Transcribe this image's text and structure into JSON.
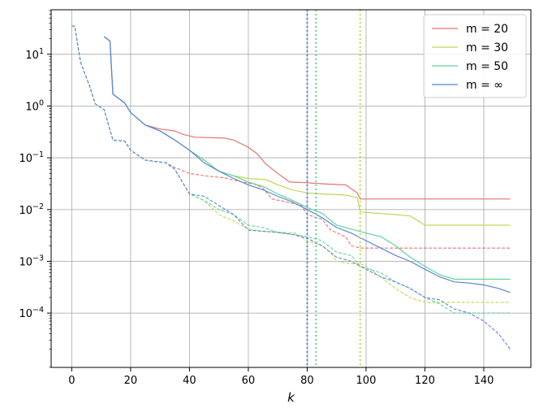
{
  "chart_data": {
    "type": "line",
    "xlabel": "k",
    "ylabel": "",
    "xlim": [
      -7,
      156
    ],
    "ylim_log10": [
      -5.05,
      1.86
    ],
    "yscale": "log",
    "x_ticks": [
      0,
      20,
      40,
      60,
      80,
      100,
      120,
      140
    ],
    "y_ticks": [
      {
        "exp": 1,
        "label": "10",
        "sup": "1"
      },
      {
        "exp": 0,
        "label": "10",
        "sup": "0"
      },
      {
        "exp": -1,
        "label": "10",
        "sup": "−1"
      },
      {
        "exp": -2,
        "label": "10",
        "sup": "−2"
      },
      {
        "exp": -3,
        "label": "10",
        "sup": "−3"
      },
      {
        "exp": -4,
        "label": "10",
        "sup": "−4"
      }
    ],
    "grid": true,
    "legend_position": "top-right",
    "series": [
      {
        "name": "m = 20",
        "color": "#e5736e",
        "solid": [
          [
            11,
            22
          ],
          [
            13,
            18
          ],
          [
            14,
            1.7
          ],
          [
            18,
            1.15
          ],
          [
            20,
            0.75
          ],
          [
            25,
            0.43
          ],
          [
            30,
            0.36
          ],
          [
            35,
            0.33
          ],
          [
            38,
            0.28
          ],
          [
            42,
            0.25
          ],
          [
            52,
            0.24
          ],
          [
            55,
            0.22
          ],
          [
            60,
            0.16
          ],
          [
            63,
            0.12
          ],
          [
            66,
            0.075
          ],
          [
            70,
            0.05
          ],
          [
            74,
            0.034
          ],
          [
            80,
            0.033
          ],
          [
            87,
            0.031
          ],
          [
            93,
            0.03
          ],
          [
            97,
            0.021
          ],
          [
            98,
            0.016
          ],
          [
            149,
            0.016
          ]
        ],
        "dashed": [
          [
            0,
            35
          ],
          [
            1,
            35
          ],
          [
            3,
            7
          ],
          [
            6,
            2.5
          ],
          [
            8,
            1.1
          ],
          [
            11,
            0.85
          ],
          [
            14,
            0.22
          ],
          [
            18,
            0.21
          ],
          [
            20,
            0.14
          ],
          [
            25,
            0.09
          ],
          [
            32,
            0.08
          ],
          [
            35,
            0.065
          ],
          [
            40,
            0.05
          ],
          [
            45,
            0.045
          ],
          [
            52,
            0.041
          ],
          [
            55,
            0.037
          ],
          [
            58,
            0.034
          ],
          [
            62,
            0.031
          ],
          [
            65,
            0.026
          ],
          [
            68,
            0.016
          ],
          [
            73,
            0.014
          ],
          [
            78,
            0.012
          ],
          [
            80,
            0.008
          ],
          [
            85,
            0.0065
          ],
          [
            88,
            0.004
          ],
          [
            93,
            0.003
          ],
          [
            95,
            0.002
          ],
          [
            98,
            0.0018
          ],
          [
            149,
            0.0018
          ]
        ]
      },
      {
        "name": "m = 30",
        "color": "#c3d655",
        "solid": [
          [
            11,
            22
          ],
          [
            13,
            18
          ],
          [
            14,
            1.7
          ],
          [
            18,
            1.15
          ],
          [
            20,
            0.75
          ],
          [
            25,
            0.43
          ],
          [
            30,
            0.33
          ],
          [
            35,
            0.22
          ],
          [
            40,
            0.14
          ],
          [
            45,
            0.09
          ],
          [
            50,
            0.055
          ],
          [
            55,
            0.045
          ],
          [
            60,
            0.04
          ],
          [
            66,
            0.038
          ],
          [
            70,
            0.03
          ],
          [
            75,
            0.024
          ],
          [
            80,
            0.021
          ],
          [
            85,
            0.02
          ],
          [
            93,
            0.019
          ],
          [
            97,
            0.017
          ],
          [
            98,
            0.009
          ],
          [
            110,
            0.008
          ],
          [
            115,
            0.0075
          ],
          [
            120,
            0.005
          ],
          [
            149,
            0.005
          ]
        ],
        "dashed": [
          [
            0,
            35
          ],
          [
            1,
            35
          ],
          [
            3,
            7
          ],
          [
            6,
            2.5
          ],
          [
            8,
            1.1
          ],
          [
            11,
            0.85
          ],
          [
            14,
            0.22
          ],
          [
            18,
            0.21
          ],
          [
            20,
            0.14
          ],
          [
            25,
            0.09
          ],
          [
            32,
            0.08
          ],
          [
            35,
            0.06
          ],
          [
            40,
            0.02
          ],
          [
            45,
            0.015
          ],
          [
            50,
            0.008
          ],
          [
            55,
            0.006
          ],
          [
            60,
            0.0042
          ],
          [
            65,
            0.0038
          ],
          [
            70,
            0.0037
          ],
          [
            76,
            0.0035
          ],
          [
            80,
            0.0025
          ],
          [
            85,
            0.002
          ],
          [
            88,
            0.0015
          ],
          [
            90,
            0.001
          ],
          [
            95,
            0.0009
          ],
          [
            98,
            0.0009
          ],
          [
            100,
            0.0008
          ],
          [
            105,
            0.0005
          ],
          [
            110,
            0.0003
          ],
          [
            115,
            0.0002
          ],
          [
            120,
            0.00016
          ],
          [
            149,
            0.00016
          ]
        ]
      },
      {
        "name": "m = 50",
        "color": "#5fd59a",
        "solid": [
          [
            11,
            22
          ],
          [
            13,
            18
          ],
          [
            14,
            1.7
          ],
          [
            18,
            1.15
          ],
          [
            20,
            0.75
          ],
          [
            25,
            0.43
          ],
          [
            30,
            0.33
          ],
          [
            35,
            0.22
          ],
          [
            40,
            0.14
          ],
          [
            45,
            0.09
          ],
          [
            50,
            0.055
          ],
          [
            55,
            0.045
          ],
          [
            60,
            0.034
          ],
          [
            65,
            0.028
          ],
          [
            70,
            0.02
          ],
          [
            75,
            0.015
          ],
          [
            80,
            0.011
          ],
          [
            85,
            0.0085
          ],
          [
            90,
            0.005
          ],
          [
            95,
            0.0042
          ],
          [
            100,
            0.0035
          ],
          [
            105,
            0.003
          ],
          [
            110,
            0.002
          ],
          [
            115,
            0.0012
          ],
          [
            120,
            0.0008
          ],
          [
            125,
            0.00055
          ],
          [
            130,
            0.00045
          ],
          [
            149,
            0.00045
          ]
        ],
        "dashed": [
          [
            0,
            35
          ],
          [
            1,
            35
          ],
          [
            3,
            7
          ],
          [
            6,
            2.5
          ],
          [
            8,
            1.1
          ],
          [
            11,
            0.85
          ],
          [
            14,
            0.22
          ],
          [
            18,
            0.21
          ],
          [
            20,
            0.14
          ],
          [
            25,
            0.09
          ],
          [
            32,
            0.08
          ],
          [
            35,
            0.06
          ],
          [
            40,
            0.02
          ],
          [
            45,
            0.015
          ],
          [
            50,
            0.01
          ],
          [
            55,
            0.008
          ],
          [
            60,
            0.005
          ],
          [
            65,
            0.0045
          ],
          [
            70,
            0.0036
          ],
          [
            75,
            0.0033
          ],
          [
            80,
            0.003
          ],
          [
            85,
            0.0025
          ],
          [
            90,
            0.0015
          ],
          [
            95,
            0.0013
          ],
          [
            98,
            0.0008
          ],
          [
            105,
            0.0006
          ],
          [
            110,
            0.0004
          ],
          [
            115,
            0.0003
          ],
          [
            120,
            0.0002
          ],
          [
            125,
            0.00015
          ],
          [
            130,
            0.0001
          ],
          [
            149,
            0.0001
          ]
        ]
      },
      {
        "name": "m = ∞",
        "color": "#5b84d6",
        "solid": [
          [
            11,
            22
          ],
          [
            13,
            18
          ],
          [
            14,
            1.7
          ],
          [
            18,
            1.15
          ],
          [
            20,
            0.75
          ],
          [
            25,
            0.43
          ],
          [
            30,
            0.33
          ],
          [
            35,
            0.22
          ],
          [
            40,
            0.14
          ],
          [
            45,
            0.08
          ],
          [
            50,
            0.055
          ],
          [
            55,
            0.04
          ],
          [
            60,
            0.03
          ],
          [
            65,
            0.024
          ],
          [
            70,
            0.018
          ],
          [
            75,
            0.014
          ],
          [
            80,
            0.01
          ],
          [
            85,
            0.007
          ],
          [
            90,
            0.0045
          ],
          [
            95,
            0.0035
          ],
          [
            100,
            0.0025
          ],
          [
            105,
            0.0018
          ],
          [
            110,
            0.0013
          ],
          [
            115,
            0.001
          ],
          [
            120,
            0.0007
          ],
          [
            125,
            0.0005
          ],
          [
            130,
            0.0004
          ],
          [
            135,
            0.00038
          ],
          [
            140,
            0.00035
          ],
          [
            145,
            0.0003
          ],
          [
            149,
            0.00025
          ]
        ],
        "dashed": [
          [
            0,
            35
          ],
          [
            1,
            35
          ],
          [
            3,
            7
          ],
          [
            6,
            2.5
          ],
          [
            8,
            1.1
          ],
          [
            11,
            0.85
          ],
          [
            14,
            0.22
          ],
          [
            18,
            0.21
          ],
          [
            20,
            0.14
          ],
          [
            25,
            0.09
          ],
          [
            32,
            0.08
          ],
          [
            35,
            0.06
          ],
          [
            40,
            0.02
          ],
          [
            45,
            0.018
          ],
          [
            50,
            0.012
          ],
          [
            55,
            0.008
          ],
          [
            60,
            0.004
          ],
          [
            65,
            0.0038
          ],
          [
            70,
            0.0036
          ],
          [
            75,
            0.0033
          ],
          [
            80,
            0.0028
          ],
          [
            85,
            0.002
          ],
          [
            90,
            0.0012
          ],
          [
            95,
            0.001
          ],
          [
            100,
            0.0007
          ],
          [
            105,
            0.0005
          ],
          [
            110,
            0.0004
          ],
          [
            115,
            0.0003
          ],
          [
            120,
            0.0002
          ],
          [
            125,
            0.00018
          ],
          [
            130,
            0.00012
          ],
          [
            135,
            0.0001
          ],
          [
            140,
            7e-05
          ],
          [
            145,
            4e-05
          ],
          [
            149,
            2e-05
          ]
        ]
      }
    ],
    "vlines": [
      {
        "x": 98,
        "color": "#c3d655"
      },
      {
        "x": 83,
        "color": "#5fd59a"
      },
      {
        "x": 80,
        "color": "#5b84d6"
      }
    ]
  }
}
